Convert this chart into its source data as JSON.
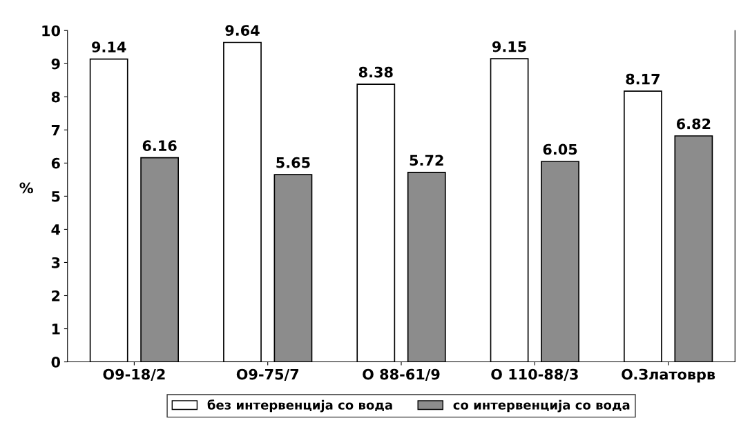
{
  "chart_data": {
    "type": "bar",
    "ylabel": "%",
    "categories": [
      "O9-18/2",
      "O9-75/7",
      "O 88-61/9",
      "O 110-88/3",
      "O.Златоврв"
    ],
    "series": [
      {
        "name": "без интервенција со вода",
        "color": "#ffffff",
        "values": [
          9.14,
          9.64,
          8.38,
          9.15,
          8.17
        ]
      },
      {
        "name": "со интервенција со вода",
        "color": "#8c8c8c",
        "values": [
          6.16,
          5.65,
          5.72,
          6.05,
          6.82
        ]
      }
    ],
    "ylim": [
      0,
      10
    ],
    "yticks": [
      0,
      1,
      2,
      3,
      4,
      5,
      6,
      7,
      8,
      9,
      10
    ],
    "data_labels": true,
    "grid": false,
    "legend": "bottom"
  }
}
